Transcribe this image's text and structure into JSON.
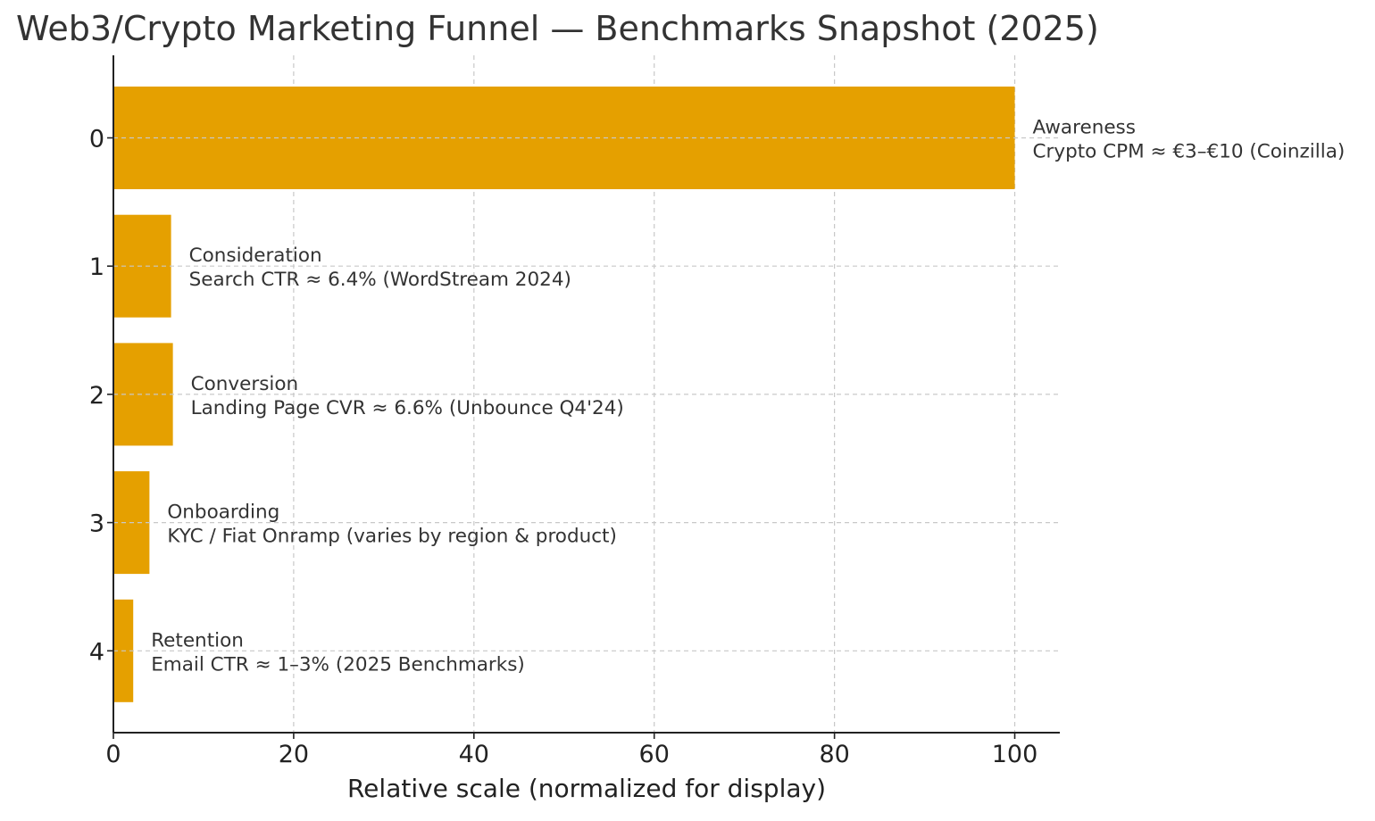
{
  "chart_data": {
    "type": "bar",
    "orientation": "horizontal",
    "title": "Web3/Crypto Marketing Funnel — Benchmarks Snapshot (2025)",
    "xlabel": "Relative scale (normalized for display)",
    "ylabel": "",
    "xlim": [
      0,
      105
    ],
    "x_ticks": [
      0,
      20,
      40,
      60,
      80,
      100
    ],
    "categories": [
      0,
      1,
      2,
      3,
      4
    ],
    "values": [
      100,
      6.4,
      6.6,
      4.0,
      2.2
    ],
    "bar_labels": [
      [
        "Awareness",
        "Crypto CPM ≈ €3–€10 (Coinzilla)"
      ],
      [
        "Consideration",
        "Search CTR ≈ 6.4% (WordStream 2024)"
      ],
      [
        "Conversion",
        "Landing Page CVR ≈ 6.6% (Unbounce Q4'24)"
      ],
      [
        "Onboarding",
        "KYC / Fiat Onramp (varies by region & product)"
      ],
      [
        "Retention",
        "Email CTR ≈ 1–3% (2025 Benchmarks)"
      ]
    ],
    "bar_color": "#E5A000",
    "grid": true,
    "legend": "none"
  }
}
